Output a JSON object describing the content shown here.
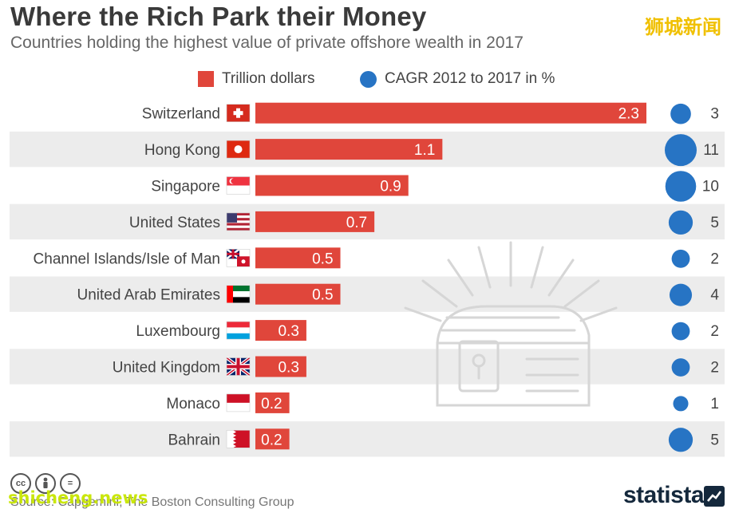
{
  "header": {
    "title": "Where the Rich Park their Money",
    "subtitle": "Countries holding the highest value of private offshore wealth in 2017",
    "watermark": "狮城新闻"
  },
  "legend": {
    "bar_label": "Trillion dollars",
    "dot_label": "CAGR 2012 to 2017 in %"
  },
  "colors": {
    "bar": "#e0463b",
    "dot": "#2774c4",
    "stripe": "#ececec"
  },
  "chart_data": {
    "type": "bar",
    "orientation": "horizontal",
    "categories": [
      "Switzerland",
      "Hong Kong",
      "Singapore",
      "United States",
      "Channel Islands/Isle of Man",
      "United Arab Emirates",
      "Luxembourg",
      "United Kingdom",
      "Monaco",
      "Bahrain"
    ],
    "series": [
      {
        "name": "Trillion dollars",
        "values": [
          2.3,
          1.1,
          0.9,
          0.7,
          0.5,
          0.5,
          0.3,
          0.3,
          0.2,
          0.2
        ]
      },
      {
        "name": "CAGR 2012 to 2017 in %",
        "values": [
          3,
          11,
          10,
          5,
          2,
          4,
          2,
          2,
          1,
          5
        ]
      }
    ],
    "flags": [
      "switzerland",
      "hong-kong",
      "singapore",
      "united-states",
      "channel-islands-isle-of-man",
      "united-arab-emirates",
      "luxembourg",
      "united-kingdom",
      "monaco",
      "bahrain"
    ],
    "legend_position": "top"
  },
  "footer": {
    "source": "Source: Capgemini, The Boston Consulting Group",
    "site_watermark": "shicheng.news",
    "brand": "statista",
    "license_icons": [
      "cc",
      "by",
      "nd"
    ]
  }
}
